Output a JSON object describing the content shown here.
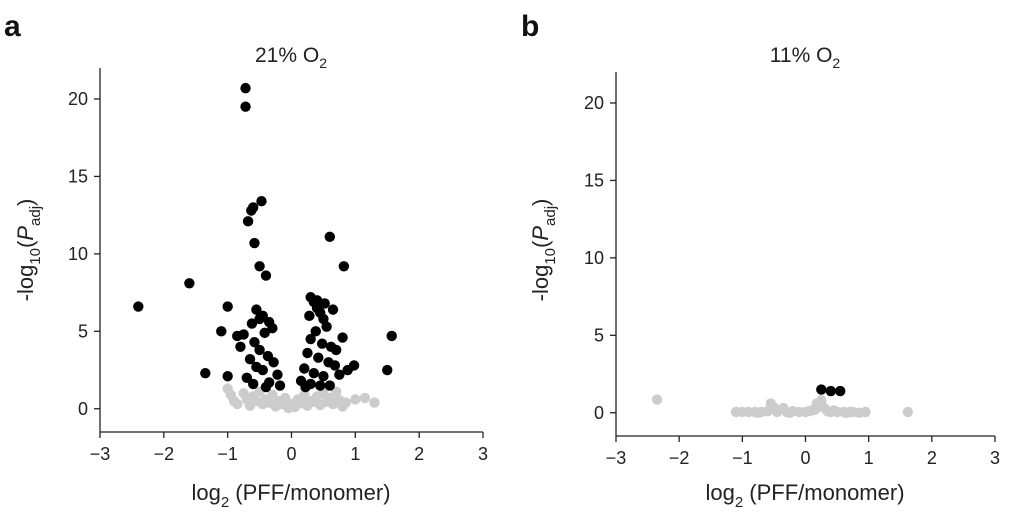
{
  "chart_data": [
    {
      "type": "scatter",
      "panel": "a",
      "title": {
        "prefix": "21% O",
        "sub": "2"
      },
      "xlabel": {
        "prefix": "log",
        "sub": "2",
        "suffix": " (PFF/monomer)"
      },
      "ylabel": {
        "prefix": "-log",
        "sub": "10",
        "mid": "(",
        "italic": "P",
        "sub2": "adj",
        "suffix": ")"
      },
      "xlim": [
        -3,
        3
      ],
      "ylim": [
        -1.5,
        22
      ],
      "xticks": [
        -3,
        -2,
        -1,
        0,
        1,
        2,
        3
      ],
      "yticks": [
        0,
        5,
        10,
        15,
        20
      ],
      "grid": false,
      "colors": {
        "significant": "#000000",
        "not_significant": "#cccccc"
      },
      "significant_points": [
        [
          -0.72,
          20.7
        ],
        [
          -0.72,
          19.5
        ],
        [
          -0.47,
          13.4
        ],
        [
          -0.6,
          13.0
        ],
        [
          -0.63,
          12.8
        ],
        [
          -0.68,
          12.1
        ],
        [
          -0.58,
          10.7
        ],
        [
          0.6,
          11.1
        ],
        [
          -0.5,
          9.2
        ],
        [
          -0.4,
          8.6
        ],
        [
          0.82,
          9.2
        ],
        [
          -1.6,
          8.1
        ],
        [
          -2.4,
          6.6
        ],
        [
          -1.0,
          6.6
        ],
        [
          -1.1,
          5.0
        ],
        [
          -0.85,
          4.7
        ],
        [
          -0.75,
          4.8
        ],
        [
          -0.8,
          4.0
        ],
        [
          -1.35,
          2.3
        ],
        [
          -1.0,
          2.1
        ],
        [
          1.57,
          4.7
        ],
        [
          1.5,
          2.5
        ],
        [
          0.98,
          2.8
        ],
        [
          -0.55,
          6.4
        ],
        [
          -0.5,
          5.8
        ],
        [
          -0.45,
          6.0
        ],
        [
          -0.35,
          5.6
        ],
        [
          -0.3,
          5.2
        ],
        [
          -0.62,
          5.5
        ],
        [
          -0.42,
          4.9
        ],
        [
          -0.58,
          4.3
        ],
        [
          -0.5,
          3.8
        ],
        [
          -0.37,
          3.4
        ],
        [
          -0.28,
          3.0
        ],
        [
          -0.65,
          3.2
        ],
        [
          -0.55,
          2.7
        ],
        [
          -0.45,
          2.5
        ],
        [
          -0.22,
          2.2
        ],
        [
          -0.7,
          2.0
        ],
        [
          -0.6,
          1.6
        ],
        [
          -0.35,
          1.7
        ],
        [
          -0.18,
          1.5
        ],
        [
          -0.4,
          1.4
        ],
        [
          0.3,
          7.2
        ],
        [
          0.35,
          6.9
        ],
        [
          0.4,
          6.5
        ],
        [
          0.45,
          6.2
        ],
        [
          0.28,
          6.0
        ],
        [
          0.5,
          5.8
        ],
        [
          0.55,
          5.3
        ],
        [
          0.38,
          5.0
        ],
        [
          0.3,
          4.5
        ],
        [
          0.48,
          4.2
        ],
        [
          0.62,
          4.0
        ],
        [
          0.7,
          3.8
        ],
        [
          0.8,
          4.6
        ],
        [
          0.25,
          3.6
        ],
        [
          0.42,
          3.3
        ],
        [
          0.58,
          3.0
        ],
        [
          0.68,
          2.8
        ],
        [
          0.2,
          2.6
        ],
        [
          0.35,
          2.3
        ],
        [
          0.5,
          2.1
        ],
        [
          0.75,
          2.2
        ],
        [
          0.88,
          2.5
        ],
        [
          0.15,
          1.8
        ],
        [
          0.3,
          1.6
        ],
        [
          0.45,
          1.5
        ],
        [
          0.6,
          1.5
        ],
        [
          0.22,
          1.4
        ],
        [
          0.65,
          6.4
        ],
        [
          0.52,
          6.8
        ],
        [
          0.4,
          7.0
        ]
      ],
      "not_significant_points": [
        [
          -1.0,
          1.3
        ],
        [
          -0.95,
          0.9
        ],
        [
          -0.75,
          1.0
        ],
        [
          -0.6,
          0.8
        ],
        [
          -0.5,
          1.1
        ],
        [
          -0.4,
          0.6
        ],
        [
          -0.3,
          0.9
        ],
        [
          -0.2,
          0.5
        ],
        [
          -0.1,
          0.7
        ],
        [
          0.0,
          0.3
        ],
        [
          0.1,
          0.6
        ],
        [
          0.2,
          0.9
        ],
        [
          0.3,
          0.5
        ],
        [
          0.4,
          0.8
        ],
        [
          0.5,
          1.0
        ],
        [
          0.6,
          0.7
        ],
        [
          0.7,
          1.1
        ],
        [
          0.85,
          0.4
        ],
        [
          1.0,
          0.6
        ],
        [
          1.15,
          0.7
        ],
        [
          1.3,
          0.4
        ],
        [
          -0.85,
          0.3
        ],
        [
          -0.65,
          0.2
        ],
        [
          -0.45,
          0.3
        ],
        [
          -0.25,
          0.15
        ],
        [
          -0.05,
          0.05
        ],
        [
          0.05,
          0.1
        ],
        [
          0.25,
          0.2
        ],
        [
          0.45,
          0.25
        ],
        [
          0.65,
          0.3
        ],
        [
          0.8,
          0.15
        ],
        [
          -0.15,
          0.3
        ],
        [
          0.15,
          0.35
        ],
        [
          -0.35,
          0.4
        ],
        [
          0.35,
          0.45
        ],
        [
          -0.55,
          0.5
        ],
        [
          0.55,
          0.45
        ],
        [
          -0.7,
          0.6
        ],
        [
          0.75,
          0.55
        ],
        [
          -0.9,
          0.5
        ]
      ]
    },
    {
      "type": "scatter",
      "panel": "b",
      "title": {
        "prefix": "11% O",
        "sub": "2"
      },
      "xlabel": {
        "prefix": "log",
        "sub": "2",
        "suffix": " (PFF/monomer)"
      },
      "ylabel": {
        "prefix": "-log",
        "sub": "10",
        "mid": "(",
        "italic": "P",
        "sub2": "adj",
        "suffix": ")"
      },
      "xlim": [
        -3,
        3
      ],
      "ylim": [
        -1.5,
        22
      ],
      "xticks": [
        -3,
        -2,
        -1,
        0,
        1,
        2,
        3
      ],
      "yticks": [
        0,
        5,
        10,
        15,
        20
      ],
      "grid": false,
      "colors": {
        "significant": "#000000",
        "not_significant": "#cccccc"
      },
      "significant_points": [
        [
          0.25,
          1.5
        ],
        [
          0.4,
          1.4
        ],
        [
          0.55,
          1.4
        ]
      ],
      "not_significant_points": [
        [
          -2.35,
          0.85
        ],
        [
          -1.1,
          0.05
        ],
        [
          -1.0,
          0.05
        ],
        [
          -0.9,
          0.05
        ],
        [
          -0.8,
          0.05
        ],
        [
          -0.7,
          0.05
        ],
        [
          -0.6,
          0.1
        ],
        [
          -0.5,
          0.35
        ],
        [
          -0.45,
          0.05
        ],
        [
          -0.35,
          0.3
        ],
        [
          -0.3,
          0.05
        ],
        [
          -0.2,
          0.1
        ],
        [
          -0.1,
          0.05
        ],
        [
          0.0,
          0.05
        ],
        [
          0.05,
          0.1
        ],
        [
          0.1,
          0.15
        ],
        [
          0.15,
          0.2
        ],
        [
          0.18,
          0.6
        ],
        [
          0.2,
          0.4
        ],
        [
          0.25,
          0.8
        ],
        [
          0.3,
          0.3
        ],
        [
          0.35,
          0.1
        ],
        [
          0.4,
          0.05
        ],
        [
          0.45,
          0.15
        ],
        [
          0.5,
          0.05
        ],
        [
          0.6,
          0.05
        ],
        [
          0.7,
          0.05
        ],
        [
          0.75,
          0.05
        ],
        [
          0.95,
          0.05
        ],
        [
          1.62,
          0.05
        ],
        [
          -0.55,
          0.6
        ],
        [
          -0.75,
          0.0
        ],
        [
          -0.25,
          0.0
        ],
        [
          0.65,
          0.0
        ],
        [
          0.85,
          0.0
        ]
      ]
    }
  ]
}
